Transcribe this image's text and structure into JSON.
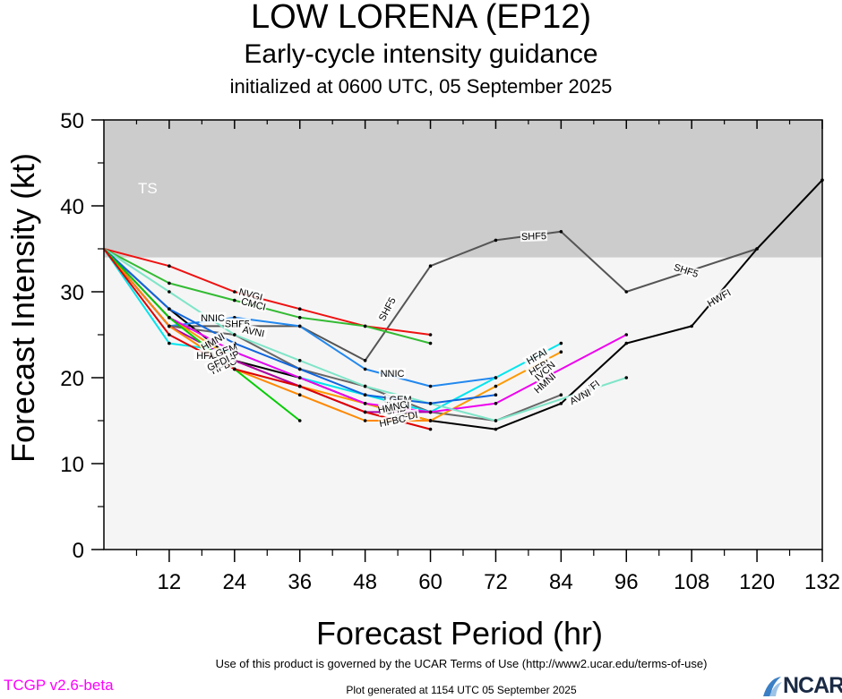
{
  "chart_data": {
    "type": "line",
    "title": "LOW LORENA (EP12)",
    "subtitle": "Early-cycle intensity guidance",
    "subtitle2": "initialized at 0600 UTC, 05 September 2025",
    "xlabel": "Forecast Period (hr)",
    "ylabel": "Forecast Intensity (kt)",
    "xlim": [
      0,
      132
    ],
    "ylim": [
      0,
      50
    ],
    "x_ticks": [
      "12",
      "24",
      "36",
      "48",
      "60",
      "72",
      "84",
      "96",
      "108",
      "120",
      "132"
    ],
    "y_ticks": [
      "0",
      "10",
      "20",
      "30",
      "40",
      "50"
    ],
    "band": {
      "label": "TS",
      "from": 34,
      "to": 50,
      "color": "#cccccc"
    },
    "background_color": "#f5f5f5",
    "grid": false,
    "series": [
      {
        "name": "SHF5",
        "color": "#555555",
        "x": [
          0,
          12,
          24,
          36,
          48,
          60,
          72,
          84,
          96,
          120
        ],
        "y": [
          35,
          26,
          26,
          26,
          22,
          33,
          36,
          37,
          30,
          35
        ]
      },
      {
        "name": "HWFI",
        "color": "#000000",
        "x": [
          0,
          12,
          24,
          36,
          48,
          60,
          72,
          84,
          96,
          108,
          120,
          132
        ],
        "y": [
          35,
          28,
          22,
          20,
          17,
          15,
          14,
          17,
          24,
          26,
          35,
          43
        ]
      },
      {
        "name": "NVGI",
        "color": "#ee1111",
        "x": [
          0,
          12,
          24,
          36,
          48,
          60
        ],
        "y": [
          35,
          33,
          30,
          28,
          26,
          25
        ]
      },
      {
        "name": "CMCI",
        "color": "#33bb33",
        "x": [
          0,
          12,
          24,
          36,
          48,
          60
        ],
        "y": [
          35,
          31,
          29,
          27,
          26,
          24
        ]
      },
      {
        "name": "NNIC",
        "color": "#2288ee",
        "x": [
          0,
          12,
          24,
          36,
          48,
          60,
          72
        ],
        "y": [
          35,
          26,
          27,
          26,
          21,
          19,
          20
        ]
      },
      {
        "name": "AVNI",
        "color": "#666666",
        "x": [
          0,
          12,
          24,
          36,
          48,
          60,
          72,
          84
        ],
        "y": [
          35,
          26,
          25,
          21,
          19,
          16,
          15,
          18
        ]
      },
      {
        "name": "HFAI",
        "color": "#00e5ee",
        "x": [
          0,
          12,
          24,
          36,
          48,
          60,
          72,
          84
        ],
        "y": [
          35,
          24,
          23,
          20,
          18,
          16,
          20,
          24
        ]
      },
      {
        "name": "HFBI",
        "color": "#ff9900",
        "x": [
          0,
          12,
          24,
          36,
          48,
          60,
          72,
          84
        ],
        "y": [
          35,
          27,
          22,
          19,
          17,
          15,
          19,
          23
        ]
      },
      {
        "name": "IVCN",
        "color": "#ee00ee",
        "x": [
          0,
          12,
          24,
          36,
          48,
          60,
          72,
          96
        ],
        "y": [
          35,
          27,
          23,
          20,
          17,
          16,
          17,
          25
        ]
      },
      {
        "name": "HMNI",
        "color": "#7fe5c8",
        "x": [
          0,
          12,
          24,
          36,
          48,
          60,
          72,
          96
        ],
        "y": [
          35,
          30,
          25,
          22,
          19,
          17,
          15,
          20
        ]
      },
      {
        "name": "LGEM",
        "color": "#1166dd",
        "x": [
          0,
          12,
          24,
          36,
          48,
          60,
          72
        ],
        "y": [
          35,
          28,
          24,
          21,
          18,
          17,
          18
        ]
      },
      {
        "name": "DSHP",
        "color": "#aa00aa",
        "x": [
          0,
          12,
          24,
          36,
          48,
          60
        ],
        "y": [
          35,
          26,
          22,
          19,
          16,
          16
        ]
      },
      {
        "name": "HFBC",
        "color": "#ff8800",
        "x": [
          0,
          12,
          24,
          36,
          48,
          60
        ],
        "y": [
          35,
          26,
          21,
          18,
          15,
          15
        ]
      },
      {
        "name": "HMNC",
        "color": "#00cc00",
        "x": [
          0,
          12,
          24,
          36
        ],
        "y": [
          35,
          27,
          21,
          15
        ]
      },
      {
        "name": "GFDI",
        "color": "#dd0000",
        "x": [
          0,
          12,
          24,
          36,
          48,
          60
        ],
        "y": [
          35,
          25,
          21,
          19,
          16,
          14
        ]
      }
    ],
    "labels": [
      {
        "text": "SHF5",
        "series": "SHF5",
        "x": 52,
        "y": 28,
        "rot": -62
      },
      {
        "text": "SHF5",
        "series": "SHF5",
        "x": 79,
        "y": 36.5,
        "rot": -2
      },
      {
        "text": "SHF5",
        "series": "SHF5",
        "x": 107,
        "y": 32.5,
        "rot": 18
      },
      {
        "text": "HWFI",
        "series": "HWFI",
        "x": 113,
        "y": 29.3,
        "rot": -30
      },
      {
        "text": "HWFI",
        "series": "HWFI",
        "x": 89,
        "y": 18.6,
        "rot": -38
      },
      {
        "text": "NVGI",
        "series": "NVGI",
        "x": 27,
        "y": 29.7,
        "rot": 15
      },
      {
        "text": "CMCI",
        "series": "CMCI",
        "x": 27.5,
        "y": 28.6,
        "rot": 15
      },
      {
        "text": "SHF5",
        "series": "SHF5",
        "x": 24.5,
        "y": 26.3,
        "rot": 0
      },
      {
        "text": "AVNI",
        "series": "AVNI",
        "x": 27.5,
        "y": 25.4,
        "rot": 12
      },
      {
        "text": "NNIC",
        "series": "NNIC",
        "x": 20,
        "y": 27,
        "rot": 0
      },
      {
        "text": "NNIC",
        "series": "NNIC",
        "x": 53,
        "y": 20.5,
        "rot": 0
      },
      {
        "text": "HMNI",
        "series": "HMNI",
        "x": 20,
        "y": 24.2,
        "rot": -30
      },
      {
        "text": "HMNI",
        "series": "HMNI",
        "x": 81,
        "y": 19.4,
        "rot": -42
      },
      {
        "text": "HFAI",
        "series": "HFAI",
        "x": 79.5,
        "y": 22.5,
        "rot": -30
      },
      {
        "text": "HFBI",
        "series": "HFBI",
        "x": 80,
        "y": 21.2,
        "rot": -30
      },
      {
        "text": "IVCN",
        "series": "IVCN",
        "x": 81,
        "y": 20.8,
        "rot": -42
      },
      {
        "text": "AVNI",
        "series": "AVNI",
        "x": 87.5,
        "y": 17.8,
        "rot": -28
      },
      {
        "text": "HFAI",
        "series": "HFAI",
        "x": 19,
        "y": 22.6,
        "rot": 0
      },
      {
        "text": "LGEM",
        "series": "LGEM",
        "x": 22,
        "y": 23.1,
        "rot": -20
      },
      {
        "text": "DSHP",
        "series": "DSHP",
        "x": 22.5,
        "y": 22.2,
        "rot": -25
      },
      {
        "text": "HFBC",
        "series": "HFBC",
        "x": 22,
        "y": 21.4,
        "rot": -25
      },
      {
        "text": "GFDI",
        "series": "GFDI",
        "x": 21,
        "y": 21.7,
        "rot": -25
      },
      {
        "text": "LGEM",
        "series": "LGEM",
        "x": 54,
        "y": 17.5,
        "rot": 0
      },
      {
        "text": "IVCN",
        "series": "IVCN",
        "x": 54,
        "y": 16.8,
        "rot": 0
      },
      {
        "text": "DSHP",
        "series": "DSHP",
        "x": 53,
        "y": 16.2,
        "rot": 0
      },
      {
        "text": "HMNC",
        "series": "HMNC",
        "x": 53,
        "y": 16.6,
        "rot": -12
      },
      {
        "text": "GFDI",
        "series": "GFDI",
        "x": 55.5,
        "y": 15.5,
        "rot": -10
      },
      {
        "text": "HFBC",
        "series": "HFBC",
        "x": 53,
        "y": 15,
        "rot": -12
      }
    ]
  },
  "footer": {
    "terms": "Use of this product is governed by the UCAR Terms of Use (http://www2.ucar.edu/terms-of-use)",
    "version": "TCGP v2.6-beta",
    "generated": "Plot generated at 1154 UTC   05 September 2025",
    "logo_text": "NCAR"
  }
}
